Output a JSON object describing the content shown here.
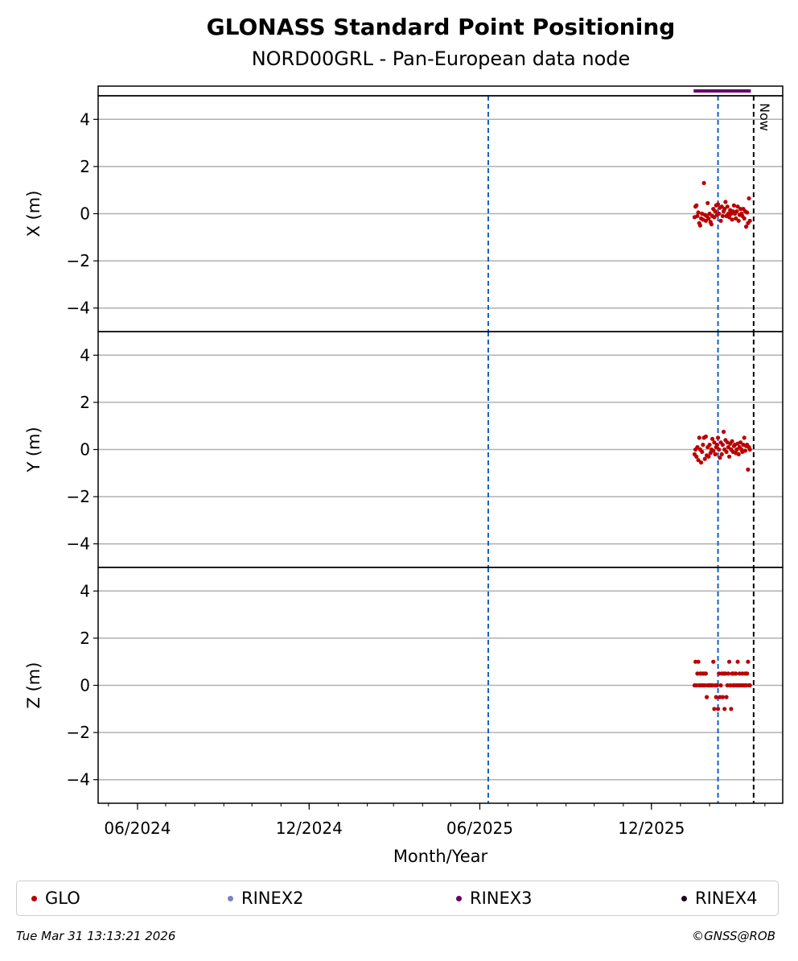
{
  "title": "GLONASS Standard Point Positioning",
  "subtitle": "NORD00GRL - Pan-European data node",
  "footer": {
    "timestamp": "Tue Mar 31 13:13:21 2026",
    "credit": "©GNSS@ROB"
  },
  "legend": [
    {
      "label": "GLO",
      "color": "#bb0000"
    },
    {
      "label": "RINEX2",
      "color": "#8080c0"
    },
    {
      "label": "RINEX3",
      "color": "#660066"
    },
    {
      "label": "RINEX4",
      "color": "#220022"
    }
  ],
  "chart_data": {
    "type": "scatter",
    "x_range": [
      "2024-04-20",
      "2026-04-20"
    ],
    "xlabel": "Month/Year",
    "x_ticks": [
      "2024-06-01",
      "2024-12-01",
      "2025-06-01",
      "2025-12-01"
    ],
    "x_tick_labels": [
      "06/2024",
      "12/2024",
      "06/2025",
      "12/2025"
    ],
    "now_line": {
      "date": "2026-03-20",
      "label": "Now"
    },
    "event_lines": [
      "2025-06-10",
      "2026-02-10"
    ],
    "rinex3_availability": {
      "start": "2026-01-15",
      "end": "2026-03-17",
      "color": "#660066"
    },
    "grid": true,
    "panels": [
      {
        "ylabel": "X (m)",
        "ylim": [
          -5,
          5
        ],
        "y_ticks": [
          -4,
          -2,
          0,
          2,
          4
        ],
        "y_tick_labels": [
          "−4",
          "−2",
          "0",
          "2",
          "4"
        ],
        "series": [
          {
            "name": "GLO",
            "color": "#bb0000",
            "points": [
              [
                "2026-01-16",
                -0.15
              ],
              [
                "2026-01-17",
                0.3
              ],
              [
                "2026-01-18",
                0.35
              ],
              [
                "2026-01-19",
                -0.1
              ],
              [
                "2026-01-20",
                0.05
              ],
              [
                "2026-01-21",
                -0.4
              ],
              [
                "2026-01-22",
                -0.5
              ],
              [
                "2026-01-23",
                -0.2
              ],
              [
                "2026-01-24",
                0.0
              ],
              [
                "2026-01-25",
                -0.25
              ],
              [
                "2026-01-26",
                1.3
              ],
              [
                "2026-01-27",
                -0.05
              ],
              [
                "2026-01-28",
                -0.3
              ],
              [
                "2026-01-29",
                -0.1
              ],
              [
                "2026-01-30",
                0.45
              ],
              [
                "2026-01-31",
                -0.2
              ],
              [
                "2026-02-01",
                0.0
              ],
              [
                "2026-02-02",
                -0.35
              ],
              [
                "2026-02-03",
                -0.45
              ],
              [
                "2026-02-04",
                -0.1
              ],
              [
                "2026-02-05",
                0.2
              ],
              [
                "2026-02-06",
                -0.15
              ],
              [
                "2026-02-07",
                0.1
              ],
              [
                "2026-02-08",
                0.35
              ],
              [
                "2026-02-09",
                -0.05
              ],
              [
                "2026-02-10",
                0.4
              ],
              [
                "2026-02-11",
                0.0
              ],
              [
                "2026-02-12",
                0.25
              ],
              [
                "2026-02-13",
                -0.3
              ],
              [
                "2026-02-14",
                0.3
              ],
              [
                "2026-02-15",
                -0.1
              ],
              [
                "2026-02-16",
                0.1
              ],
              [
                "2026-02-17",
                0.2
              ],
              [
                "2026-02-18",
                0.5
              ],
              [
                "2026-02-19",
                -0.1
              ],
              [
                "2026-02-20",
                0.3
              ],
              [
                "2026-02-21",
                0.0
              ],
              [
                "2026-02-22",
                -0.15
              ],
              [
                "2026-02-23",
                0.15
              ],
              [
                "2026-02-24",
                0.0
              ],
              [
                "2026-02-25",
                -0.25
              ],
              [
                "2026-02-26",
                0.1
              ],
              [
                "2026-02-27",
                0.35
              ],
              [
                "2026-02-28",
                0.0
              ],
              [
                "2026-03-01",
                -0.2
              ],
              [
                "2026-03-02",
                0.1
              ],
              [
                "2026-03-03",
                0.3
              ],
              [
                "2026-03-04",
                -0.3
              ],
              [
                "2026-03-05",
                -0.05
              ],
              [
                "2026-03-06",
                0.2
              ],
              [
                "2026-03-07",
                0.0
              ],
              [
                "2026-03-08",
                -0.1
              ],
              [
                "2026-03-09",
                0.2
              ],
              [
                "2026-03-10",
                -0.2
              ],
              [
                "2026-03-11",
                0.1
              ],
              [
                "2026-03-12",
                -0.55
              ],
              [
                "2026-03-13",
                0.05
              ],
              [
                "2026-03-14",
                -0.4
              ],
              [
                "2026-03-15",
                0.65
              ],
              [
                "2026-03-16",
                -0.3
              ]
            ]
          }
        ]
      },
      {
        "ylabel": "Y (m)",
        "ylim": [
          -5,
          5
        ],
        "y_ticks": [
          -4,
          -2,
          0,
          2,
          4
        ],
        "y_tick_labels": [
          "−4",
          "−2",
          "0",
          "2",
          "4"
        ],
        "series": [
          {
            "name": "GLO",
            "color": "#bb0000",
            "points": [
              [
                "2026-01-16",
                -0.2
              ],
              [
                "2026-01-17",
                0.0
              ],
              [
                "2026-01-18",
                -0.3
              ],
              [
                "2026-01-19",
                0.1
              ],
              [
                "2026-01-20",
                -0.45
              ],
              [
                "2026-01-21",
                0.5
              ],
              [
                "2026-01-22",
                0.0
              ],
              [
                "2026-01-23",
                -0.55
              ],
              [
                "2026-01-24",
                -0.1
              ],
              [
                "2026-01-25",
                0.2
              ],
              [
                "2026-01-26",
                0.5
              ],
              [
                "2026-01-27",
                -0.4
              ],
              [
                "2026-01-28",
                0.55
              ],
              [
                "2026-01-29",
                -0.25
              ],
              [
                "2026-01-30",
                0.1
              ],
              [
                "2026-01-31",
                -0.3
              ],
              [
                "2026-02-01",
                0.2
              ],
              [
                "2026-02-02",
                -0.15
              ],
              [
                "2026-02-03",
                0.0
              ],
              [
                "2026-02-04",
                0.45
              ],
              [
                "2026-02-05",
                -0.05
              ],
              [
                "2026-02-06",
                0.3
              ],
              [
                "2026-02-07",
                -0.2
              ],
              [
                "2026-02-08",
                0.1
              ],
              [
                "2026-02-09",
                0.2
              ],
              [
                "2026-02-10",
                0.5
              ],
              [
                "2026-02-11",
                0.0
              ],
              [
                "2026-02-12",
                -0.35
              ],
              [
                "2026-02-13",
                0.3
              ],
              [
                "2026-02-14",
                -0.2
              ],
              [
                "2026-02-15",
                0.2
              ],
              [
                "2026-02-16",
                0.75
              ],
              [
                "2026-02-17",
                0.0
              ],
              [
                "2026-02-18",
                0.4
              ],
              [
                "2026-02-19",
                -0.1
              ],
              [
                "2026-02-20",
                0.3
              ],
              [
                "2026-02-21",
                0.1
              ],
              [
                "2026-02-22",
                -0.3
              ],
              [
                "2026-02-23",
                0.25
              ],
              [
                "2026-02-24",
                0.0
              ],
              [
                "2026-02-25",
                0.35
              ],
              [
                "2026-02-26",
                -0.1
              ],
              [
                "2026-02-27",
                0.15
              ],
              [
                "2026-02-28",
                0.2
              ],
              [
                "2026-03-01",
                -0.15
              ],
              [
                "2026-03-02",
                0.0
              ],
              [
                "2026-03-03",
                0.25
              ],
              [
                "2026-03-04",
                -0.2
              ],
              [
                "2026-03-05",
                0.1
              ],
              [
                "2026-03-06",
                0.3
              ],
              [
                "2026-03-07",
                0.0
              ],
              [
                "2026-03-08",
                -0.1
              ],
              [
                "2026-03-09",
                0.2
              ],
              [
                "2026-03-10",
                0.5
              ],
              [
                "2026-03-11",
                -0.05
              ],
              [
                "2026-03-12",
                0.15
              ],
              [
                "2026-03-13",
                0.2
              ],
              [
                "2026-03-14",
                -0.85
              ],
              [
                "2026-03-15",
                0.1
              ],
              [
                "2026-03-16",
                0.0
              ]
            ]
          }
        ]
      },
      {
        "ylabel": "Z (m)",
        "ylim": [
          -5,
          5
        ],
        "y_ticks": [
          -4,
          -2,
          0,
          2,
          4
        ],
        "y_tick_labels": [
          "−4",
          "−2",
          "0",
          "2",
          "4"
        ],
        "series": [
          {
            "name": "GLO",
            "color": "#bb0000",
            "points": [
              [
                "2026-01-16",
                0.0
              ],
              [
                "2026-01-17",
                1.0
              ],
              [
                "2026-01-18",
                0.0
              ],
              [
                "2026-01-19",
                0.5
              ],
              [
                "2026-01-20",
                1.0
              ],
              [
                "2026-01-21",
                0.0
              ],
              [
                "2026-01-22",
                0.5
              ],
              [
                "2026-01-23",
                0.0
              ],
              [
                "2026-01-24",
                0.5
              ],
              [
                "2026-01-25",
                0.0
              ],
              [
                "2026-01-26",
                0.5
              ],
              [
                "2026-01-27",
                0.0
              ],
              [
                "2026-01-28",
                0.5
              ],
              [
                "2026-01-29",
                -0.5
              ],
              [
                "2026-01-30",
                0.0
              ],
              [
                "2026-01-31",
                0.0
              ],
              [
                "2026-02-01",
                0.0
              ],
              [
                "2026-02-02",
                0.0
              ],
              [
                "2026-02-03",
                0.0
              ],
              [
                "2026-02-04",
                0.0
              ],
              [
                "2026-02-05",
                1.0
              ],
              [
                "2026-02-06",
                -1.0
              ],
              [
                "2026-02-07",
                0.0
              ],
              [
                "2026-02-08",
                -0.5
              ],
              [
                "2026-02-09",
                0.0
              ],
              [
                "2026-02-10",
                -1.0
              ],
              [
                "2026-02-11",
                0.5
              ],
              [
                "2026-02-12",
                -0.5
              ],
              [
                "2026-02-13",
                0.0
              ],
              [
                "2026-02-14",
                0.5
              ],
              [
                "2026-02-15",
                -0.5
              ],
              [
                "2026-02-16",
                0.5
              ],
              [
                "2026-02-17",
                -1.0
              ],
              [
                "2026-02-18",
                0.5
              ],
              [
                "2026-02-19",
                -0.5
              ],
              [
                "2026-02-20",
                0.0
              ],
              [
                "2026-02-21",
                0.5
              ],
              [
                "2026-02-22",
                1.0
              ],
              [
                "2026-02-23",
                0.0
              ],
              [
                "2026-02-24",
                -1.0
              ],
              [
                "2026-02-25",
                0.5
              ],
              [
                "2026-02-26",
                0.0
              ],
              [
                "2026-02-27",
                0.5
              ],
              [
                "2026-02-28",
                0.0
              ],
              [
                "2026-03-01",
                0.5
              ],
              [
                "2026-03-02",
                0.0
              ],
              [
                "2026-03-03",
                1.0
              ],
              [
                "2026-03-04",
                0.0
              ],
              [
                "2026-03-05",
                0.5
              ],
              [
                "2026-03-06",
                0.0
              ],
              [
                "2026-03-07",
                0.0
              ],
              [
                "2026-03-08",
                0.5
              ],
              [
                "2026-03-09",
                0.0
              ],
              [
                "2026-03-10",
                0.0
              ],
              [
                "2026-03-11",
                0.5
              ],
              [
                "2026-03-12",
                0.0
              ],
              [
                "2026-03-13",
                0.5
              ],
              [
                "2026-03-14",
                1.0
              ],
              [
                "2026-03-15",
                0.0
              ],
              [
                "2026-03-16",
                0.0
              ]
            ]
          }
        ]
      }
    ]
  }
}
